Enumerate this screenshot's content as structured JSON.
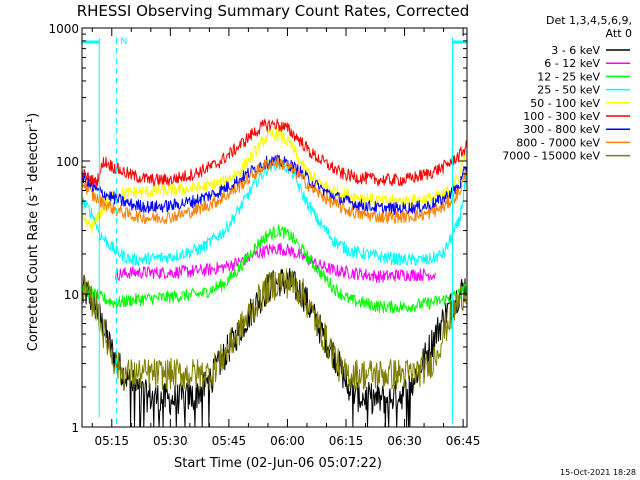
{
  "chart_data": {
    "type": "line",
    "title": "RHESSI Observing Summary Count Rates, Corrected",
    "xlabel": "Start Time (02-Jun-06 05:07:22)",
    "ylabel": "Corrected Count Rate (s",
    "ylabel_sup1": "-1",
    "ylabel_mid": " detector",
    "ylabel_sup2": "-1",
    "ylabel_end": ")",
    "y_scale": "log",
    "ylim": [
      1,
      1000
    ],
    "x_start_min": 307.37,
    "x_end_min": 406,
    "x_ticks": [
      {
        "min": 315,
        "label": "05:15"
      },
      {
        "min": 330,
        "label": "05:30"
      },
      {
        "min": 345,
        "label": "05:45"
      },
      {
        "min": 360,
        "label": "06:00"
      },
      {
        "min": 375,
        "label": "06:15"
      },
      {
        "min": 390,
        "label": "06:30"
      },
      {
        "min": 405,
        "label": "06:45"
      }
    ],
    "y_ticks": [
      {
        "value": 1,
        "label": "1"
      },
      {
        "value": 10,
        "label": "10"
      },
      {
        "value": 100,
        "label": "100"
      },
      {
        "value": 1000,
        "label": "1000"
      }
    ],
    "legend": {
      "header1": "Det 1,3,4,5,6,9,",
      "header2": "Att 0",
      "placement": "right"
    },
    "night_intervals": [
      {
        "start_min": 307.37,
        "end_min": 311.8
      },
      {
        "start_min": 402.3,
        "end_min": 406
      }
    ],
    "saa_markers_min": [
      316.2,
      402.3
    ],
    "saa_label": "N",
    "footer_date": "15-Oct-2021 18:28",
    "series": [
      {
        "name": "3 - 6 keV",
        "color": "#000000",
        "x": [
          307.4,
          311,
          314,
          316,
          318,
          321,
          324,
          330,
          336,
          340,
          344,
          348,
          352,
          355,
          358,
          361,
          364,
          366,
          369,
          372,
          375,
          378,
          384,
          390,
          394,
          398,
          401,
          404,
          406
        ],
        "y": [
          11,
          8,
          4.5,
          3.2,
          2.5,
          2,
          1.7,
          1.6,
          1.7,
          2.2,
          3.5,
          5.5,
          8.5,
          11,
          12.5,
          12,
          10,
          7.5,
          5,
          3.5,
          2.2,
          1.7,
          1.6,
          1.8,
          2.8,
          5,
          7.5,
          10,
          12
        ]
      },
      {
        "name": "6 - 12 keV",
        "color": "#ff00ff",
        "x": [
          316,
          320,
          330,
          338,
          344,
          348,
          352,
          355,
          358,
          361,
          364,
          368,
          372,
          376,
          384,
          390,
          398
        ],
        "y": [
          14,
          14.5,
          14.5,
          15,
          16,
          17.5,
          20,
          21.5,
          22,
          21,
          19,
          16.5,
          15,
          14.5,
          13.5,
          14,
          14
        ]
      },
      {
        "name": "12 - 25 keV",
        "color": "#00ff00",
        "x": [
          307.4,
          312,
          316,
          320,
          330,
          338,
          344,
          348,
          352,
          355,
          358,
          361,
          364,
          368,
          372,
          376,
          384,
          390,
          396,
          400,
          404,
          406
        ],
        "y": [
          11,
          9.5,
          8.5,
          9,
          9.5,
          10,
          12,
          16,
          23,
          28,
          30,
          27,
          21,
          15,
          11,
          9,
          8,
          8,
          8.5,
          9,
          10,
          11
        ]
      },
      {
        "name": "25 - 50 keV",
        "color": "#00ffff",
        "x": [
          307.4,
          310,
          312,
          316,
          320,
          330,
          338,
          344,
          348,
          352,
          355,
          358,
          361,
          364,
          368,
          372,
          376,
          384,
          390,
          396,
          400,
          404,
          406
        ],
        "y": [
          50,
          40,
          28,
          21,
          18,
          19,
          22,
          30,
          45,
          70,
          90,
          98,
          85,
          55,
          35,
          25,
          21,
          19,
          18,
          18,
          20,
          35,
          80
        ]
      },
      {
        "name": "50 - 100 keV",
        "color": "#ffff00",
        "x": [
          307.4,
          310,
          312,
          315,
          320,
          330,
          338,
          344,
          348,
          352,
          355,
          358,
          361,
          364,
          368,
          372,
          376,
          384,
          390,
          396,
          400,
          404,
          406
        ],
        "y": [
          35,
          32,
          40,
          55,
          58,
          60,
          63,
          70,
          85,
          120,
          155,
          160,
          130,
          90,
          68,
          60,
          55,
          50,
          50,
          52,
          55,
          75,
          140
        ]
      },
      {
        "name": "100 - 300 keV",
        "color": "#ff0000",
        "x": [
          307.4,
          311,
          313,
          316,
          320,
          325,
          330,
          336,
          342,
          347,
          351,
          354,
          357,
          360,
          363,
          366,
          370,
          374,
          378,
          384,
          390,
          396,
          400,
          404,
          406
        ],
        "y": [
          80,
          68,
          100,
          88,
          78,
          72,
          72,
          80,
          95,
          125,
          160,
          185,
          190,
          175,
          145,
          115,
          95,
          80,
          75,
          72,
          72,
          80,
          90,
          110,
          130
        ]
      },
      {
        "name": "300 - 800 keV",
        "color": "#0000ff",
        "x": [
          307.4,
          310,
          313,
          316,
          320,
          325,
          330,
          336,
          342,
          347,
          351,
          354,
          357,
          360,
          363,
          366,
          370,
          374,
          378,
          384,
          390,
          396,
          400,
          404,
          406
        ],
        "y": [
          75,
          62,
          57,
          52,
          47,
          45,
          46,
          50,
          58,
          70,
          85,
          97,
          100,
          96,
          84,
          70,
          58,
          51,
          47,
          44,
          44,
          46,
          52,
          65,
          90
        ]
      },
      {
        "name": "800 - 7000 keV",
        "color": "#ff8000",
        "x": [
          307.4,
          310,
          313,
          316,
          320,
          325,
          330,
          336,
          342,
          347,
          351,
          354,
          357,
          360,
          363,
          366,
          370,
          374,
          378,
          384,
          390,
          396,
          400,
          404,
          406
        ],
        "y": [
          70,
          55,
          48,
          43,
          39,
          37,
          38,
          42,
          50,
          62,
          78,
          92,
          98,
          92,
          78,
          63,
          52,
          44,
          40,
          38,
          38,
          40,
          45,
          58,
          85
        ]
      },
      {
        "name": "7000 - 15000 keV",
        "color": "#808000",
        "x": [
          307.4,
          311,
          313,
          316,
          318,
          320,
          330,
          340,
          344,
          348,
          352,
          355,
          358,
          361,
          364,
          366,
          369,
          372,
          374,
          384,
          392,
          396,
          398,
          401,
          404,
          406
        ],
        "y": [
          11,
          8,
          5,
          3,
          2.5,
          2.5,
          2.5,
          2.5,
          3.5,
          5.5,
          8.5,
          11,
          12.5,
          12,
          10,
          7.5,
          5,
          3.5,
          2.5,
          2.5,
          2.5,
          2.8,
          3.5,
          6,
          9,
          11
        ]
      }
    ]
  }
}
